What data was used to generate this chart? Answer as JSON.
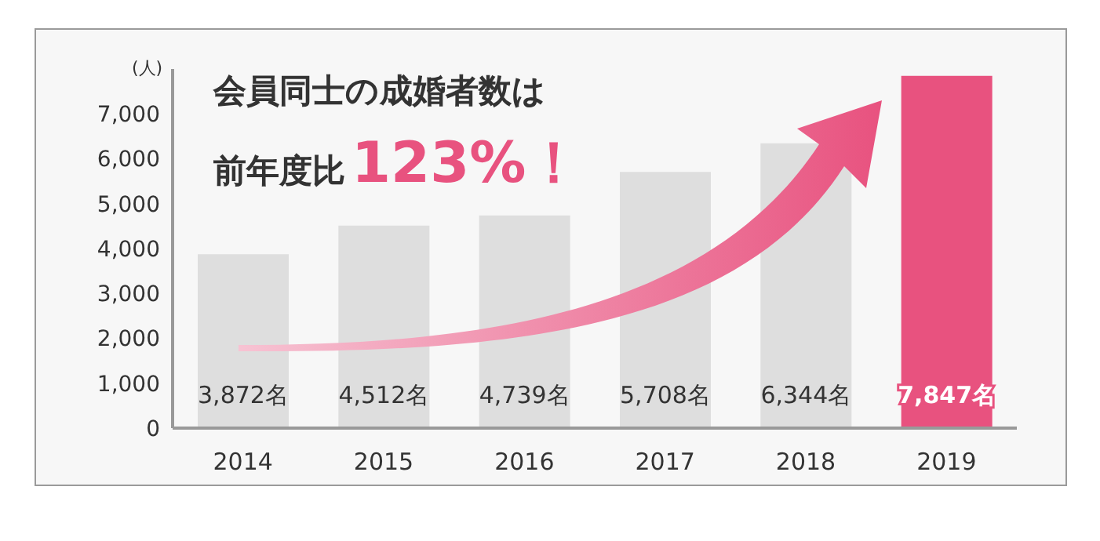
{
  "chart_data": {
    "type": "bar",
    "title": "会員同士の成婚者数は",
    "subtitle": "前年度比",
    "annotations": [
      "123%！"
    ],
    "ylabel": "(人)",
    "categories": [
      "2014",
      "2015",
      "2016",
      "2017",
      "2018",
      "2019"
    ],
    "values": [
      3872,
      4512,
      4739,
      5708,
      6344,
      7847
    ],
    "colors": [
      "#dedede",
      "#dedede",
      "#dedede",
      "#dedede",
      "#dedede",
      "#e8527f"
    ],
    "value_labels": [
      "3,872名",
      "4,512名",
      "4,739名",
      "5,708名",
      "6,344名",
      "7,847名"
    ],
    "ylim": [
      0,
      8000
    ],
    "yticks": [
      0,
      {
        "value": 1000,
        "label": "1,000"
      },
      {
        "value": 2000,
        "label": "2,000"
      },
      {
        "value": 3000,
        "label": "3,000"
      },
      {
        "value": 4000,
        "label": "4,000"
      },
      {
        "value": 5000,
        "label": "5,000"
      },
      {
        "value": 6000,
        "label": "6,000"
      },
      {
        "value": 7000,
        "label": "7,000"
      }
    ],
    "grid": false,
    "legend": false
  }
}
